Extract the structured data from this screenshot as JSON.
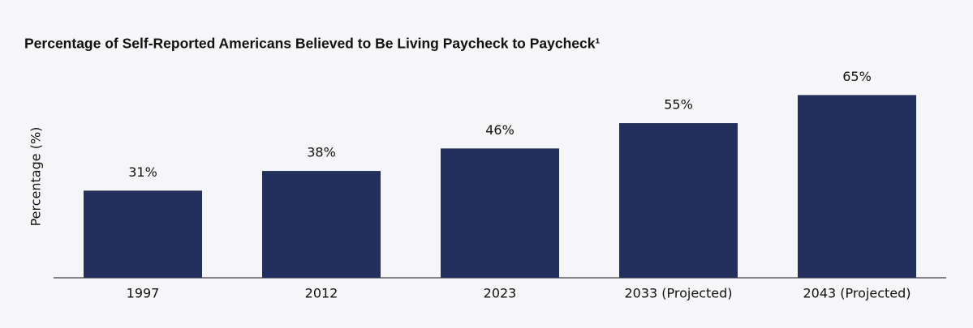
{
  "chart_data": {
    "type": "bar",
    "title": "Percentage of Self-Reported Americans Believed to Be Living Paycheck to Paycheck¹",
    "y_label": "Percentage (%)",
    "categories": [
      "1997",
      "2012",
      "2023",
      "2033 (Projected)",
      "2043 (Projected)"
    ],
    "values": [
      31,
      38,
      46,
      55,
      65
    ],
    "value_labels": [
      "31%",
      "38%",
      "46%",
      "55%",
      "65%"
    ],
    "color": "#232f5c",
    "ylim": [
      0,
      70
    ]
  }
}
